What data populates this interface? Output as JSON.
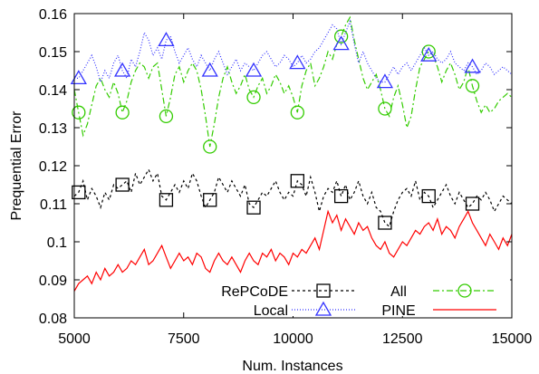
{
  "chart_data": {
    "type": "line",
    "xlabel": "Num. Instances",
    "ylabel": "Prequential Error",
    "xlim": [
      5000,
      15000
    ],
    "ylim": [
      0.08,
      0.16
    ],
    "xticks": [
      5000,
      7500,
      10000,
      12500,
      15000
    ],
    "xtick_labels": [
      "5000",
      "7500",
      "10000",
      "12500",
      "15000"
    ],
    "yticks": [
      0.08,
      0.09,
      0.1,
      0.11,
      0.12,
      0.13,
      0.14,
      0.15,
      0.16
    ],
    "ytick_labels": [
      "0.08",
      "0.09",
      "0.1",
      "0.11",
      "0.12",
      "0.13",
      "0.14",
      "0.15",
      "0.16"
    ],
    "grid": false,
    "legend_position": "bottom-right",
    "legend_rows": [
      {
        "label": "RePCoDE",
        "left_series": 0,
        "column_label": "All",
        "right_series": 1
      },
      {
        "label": "Local",
        "left_series": 2,
        "column_label": "PINE",
        "right_series": 3
      }
    ],
    "series": [
      {
        "name": "RePCoDE All",
        "color": "#000000",
        "dash": "3,3",
        "marker": "square",
        "marker_x": [
          5100,
          6100,
          7100,
          8100,
          9100,
          10100,
          11100,
          12100,
          13100,
          14100
        ],
        "x": [
          5000,
          5100,
          5200,
          5300,
          5400,
          5500,
          5600,
          5700,
          5800,
          5900,
          6000,
          6100,
          6200,
          6300,
          6400,
          6500,
          6600,
          6700,
          6800,
          6900,
          7000,
          7100,
          7200,
          7300,
          7400,
          7500,
          7600,
          7700,
          7800,
          7900,
          8000,
          8100,
          8200,
          8300,
          8400,
          8500,
          8600,
          8700,
          8800,
          8900,
          9000,
          9100,
          9200,
          9300,
          9400,
          9500,
          9600,
          9700,
          9800,
          9900,
          10000,
          10100,
          10200,
          10300,
          10400,
          10500,
          10600,
          10700,
          10800,
          10900,
          11000,
          11100,
          11200,
          11300,
          11400,
          11500,
          11600,
          11700,
          11800,
          11900,
          12000,
          12100,
          12200,
          12300,
          12400,
          12500,
          12600,
          12700,
          12800,
          12900,
          13000,
          13100,
          13200,
          13300,
          13400,
          13500,
          13600,
          13700,
          13800,
          13900,
          14000,
          14100,
          14200,
          14300,
          14400,
          14500,
          14600,
          14700,
          14800,
          14900,
          15000
        ],
        "y": [
          0.112,
          0.113,
          0.116,
          0.111,
          0.114,
          0.112,
          0.109,
          0.113,
          0.111,
          0.115,
          0.114,
          0.115,
          0.116,
          0.113,
          0.118,
          0.115,
          0.117,
          0.119,
          0.116,
          0.118,
          0.112,
          0.111,
          0.113,
          0.115,
          0.113,
          0.116,
          0.114,
          0.118,
          0.116,
          0.112,
          0.109,
          0.111,
          0.113,
          0.117,
          0.115,
          0.113,
          0.116,
          0.114,
          0.112,
          0.115,
          0.11,
          0.109,
          0.111,
          0.113,
          0.112,
          0.114,
          0.116,
          0.113,
          0.111,
          0.113,
          0.112,
          0.116,
          0.115,
          0.112,
          0.117,
          0.113,
          0.108,
          0.112,
          0.114,
          0.113,
          0.116,
          0.112,
          0.115,
          0.111,
          0.113,
          0.116,
          0.112,
          0.11,
          0.113,
          0.109,
          0.108,
          0.105,
          0.104,
          0.108,
          0.111,
          0.113,
          0.114,
          0.112,
          0.116,
          0.111,
          0.113,
          0.112,
          0.109,
          0.111,
          0.113,
          0.115,
          0.112,
          0.11,
          0.113,
          0.111,
          0.109,
          0.11,
          0.112,
          0.111,
          0.113,
          0.111,
          0.108,
          0.11,
          0.112,
          0.111,
          0.11
        ]
      },
      {
        "name": "",
        "color": "#33cc00",
        "dash": "7,3,2,3",
        "marker": "circle",
        "marker_x": [
          5100,
          6100,
          7100,
          8100,
          9100,
          10100,
          11100,
          12100,
          13100,
          14100
        ],
        "x": [
          5000,
          5100,
          5200,
          5300,
          5400,
          5500,
          5600,
          5700,
          5800,
          5900,
          6000,
          6100,
          6200,
          6300,
          6400,
          6500,
          6600,
          6700,
          6800,
          6900,
          7000,
          7100,
          7200,
          7300,
          7400,
          7500,
          7600,
          7700,
          7800,
          7900,
          8000,
          8100,
          8200,
          8300,
          8400,
          8500,
          8600,
          8700,
          8800,
          8900,
          9000,
          9100,
          9200,
          9300,
          9400,
          9500,
          9600,
          9700,
          9800,
          9900,
          10000,
          10100,
          10200,
          10300,
          10400,
          10500,
          10600,
          10700,
          10800,
          10900,
          11000,
          11100,
          11200,
          11300,
          11400,
          11500,
          11600,
          11700,
          11800,
          11900,
          12000,
          12100,
          12200,
          12300,
          12400,
          12500,
          12600,
          12700,
          12800,
          12900,
          13000,
          13100,
          13200,
          13300,
          13400,
          13500,
          13600,
          13700,
          13800,
          13900,
          14000,
          14100,
          14200,
          14300,
          14400,
          14500,
          14600,
          14700,
          14800,
          14900,
          15000
        ],
        "y": [
          0.14,
          0.134,
          0.128,
          0.131,
          0.136,
          0.141,
          0.143,
          0.14,
          0.138,
          0.142,
          0.139,
          0.134,
          0.137,
          0.142,
          0.145,
          0.147,
          0.146,
          0.143,
          0.146,
          0.147,
          0.14,
          0.133,
          0.138,
          0.144,
          0.146,
          0.142,
          0.145,
          0.147,
          0.145,
          0.14,
          0.133,
          0.125,
          0.131,
          0.138,
          0.143,
          0.146,
          0.142,
          0.139,
          0.141,
          0.144,
          0.14,
          0.138,
          0.141,
          0.143,
          0.139,
          0.141,
          0.144,
          0.142,
          0.139,
          0.141,
          0.138,
          0.134,
          0.141,
          0.145,
          0.147,
          0.141,
          0.143,
          0.146,
          0.15,
          0.148,
          0.152,
          0.154,
          0.157,
          0.159,
          0.153,
          0.148,
          0.143,
          0.14,
          0.142,
          0.144,
          0.14,
          0.135,
          0.133,
          0.138,
          0.141,
          0.136,
          0.13,
          0.133,
          0.14,
          0.146,
          0.148,
          0.15,
          0.149,
          0.146,
          0.142,
          0.145,
          0.147,
          0.144,
          0.14,
          0.142,
          0.146,
          0.141,
          0.137,
          0.134,
          0.136,
          0.134,
          0.135,
          0.137,
          0.138,
          0.139,
          0.138
        ]
      },
      {
        "name": "Local",
        "color": "#3333ff",
        "dash": "1,2",
        "marker": "triangle",
        "marker_x": [
          5100,
          6100,
          7100,
          8100,
          9100,
          10100,
          11100,
          12100,
          13100,
          14100
        ],
        "x": [
          5000,
          5100,
          5200,
          5300,
          5400,
          5500,
          5600,
          5700,
          5800,
          5900,
          6000,
          6100,
          6200,
          6300,
          6400,
          6500,
          6600,
          6700,
          6800,
          6900,
          7000,
          7100,
          7200,
          7300,
          7400,
          7500,
          7600,
          7700,
          7800,
          7900,
          8000,
          8100,
          8200,
          8300,
          8400,
          8500,
          8600,
          8700,
          8800,
          8900,
          9000,
          9100,
          9200,
          9300,
          9400,
          9500,
          9600,
          9700,
          9800,
          9900,
          10000,
          10100,
          10200,
          10300,
          10400,
          10500,
          10600,
          10700,
          10800,
          10900,
          11000,
          11100,
          11200,
          11300,
          11400,
          11500,
          11600,
          11700,
          11800,
          11900,
          12000,
          12100,
          12200,
          12300,
          12400,
          12500,
          12600,
          12700,
          12800,
          12900,
          13000,
          13100,
          13200,
          13300,
          13400,
          13500,
          13600,
          13700,
          13800,
          13900,
          14000,
          14100,
          14200,
          14300,
          14400,
          14500,
          14600,
          14700,
          14800,
          14900,
          15000
        ],
        "y": [
          0.143,
          0.143,
          0.145,
          0.147,
          0.149,
          0.146,
          0.142,
          0.145,
          0.143,
          0.147,
          0.149,
          0.145,
          0.143,
          0.148,
          0.146,
          0.15,
          0.155,
          0.153,
          0.149,
          0.151,
          0.148,
          0.153,
          0.154,
          0.15,
          0.147,
          0.149,
          0.151,
          0.148,
          0.146,
          0.149,
          0.147,
          0.145,
          0.148,
          0.15,
          0.147,
          0.144,
          0.146,
          0.148,
          0.145,
          0.147,
          0.146,
          0.145,
          0.147,
          0.149,
          0.15,
          0.148,
          0.146,
          0.147,
          0.149,
          0.148,
          0.146,
          0.147,
          0.149,
          0.147,
          0.148,
          0.15,
          0.151,
          0.153,
          0.155,
          0.157,
          0.156,
          0.152,
          0.155,
          0.158,
          0.152,
          0.147,
          0.15,
          0.147,
          0.145,
          0.143,
          0.142,
          0.142,
          0.144,
          0.146,
          0.144,
          0.146,
          0.147,
          0.145,
          0.147,
          0.149,
          0.151,
          0.149,
          0.15,
          0.148,
          0.147,
          0.148,
          0.15,
          0.147,
          0.146,
          0.145,
          0.147,
          0.146,
          0.144,
          0.145,
          0.147,
          0.146,
          0.144,
          0.145,
          0.146,
          0.145,
          0.144
        ]
      },
      {
        "name": "PINE",
        "color": "#ff0000",
        "dash": "",
        "marker": "none",
        "marker_x": [],
        "x": [
          5000,
          5100,
          5200,
          5300,
          5400,
          5500,
          5600,
          5700,
          5800,
          5900,
          6000,
          6100,
          6200,
          6300,
          6400,
          6500,
          6600,
          6700,
          6800,
          6900,
          7000,
          7100,
          7200,
          7300,
          7400,
          7500,
          7600,
          7700,
          7800,
          7900,
          8000,
          8100,
          8200,
          8300,
          8400,
          8500,
          8600,
          8700,
          8800,
          8900,
          9000,
          9100,
          9200,
          9300,
          9400,
          9500,
          9600,
          9700,
          9800,
          9900,
          10000,
          10100,
          10200,
          10300,
          10400,
          10500,
          10600,
          10700,
          10800,
          10900,
          11000,
          11100,
          11200,
          11300,
          11400,
          11500,
          11600,
          11700,
          11800,
          11900,
          12000,
          12100,
          12200,
          12300,
          12400,
          12500,
          12600,
          12700,
          12800,
          12900,
          13000,
          13100,
          13200,
          13300,
          13400,
          13500,
          13600,
          13700,
          13800,
          13900,
          14000,
          14100,
          14200,
          14300,
          14400,
          14500,
          14600,
          14700,
          14800,
          14900,
          15000
        ],
        "y": [
          0.087,
          0.089,
          0.09,
          0.091,
          0.089,
          0.092,
          0.09,
          0.093,
          0.091,
          0.092,
          0.094,
          0.092,
          0.093,
          0.095,
          0.094,
          0.096,
          0.098,
          0.094,
          0.095,
          0.097,
          0.099,
          0.096,
          0.093,
          0.095,
          0.097,
          0.095,
          0.096,
          0.094,
          0.097,
          0.096,
          0.093,
          0.092,
          0.095,
          0.097,
          0.095,
          0.094,
          0.096,
          0.094,
          0.092,
          0.095,
          0.097,
          0.095,
          0.094,
          0.097,
          0.096,
          0.098,
          0.095,
          0.097,
          0.096,
          0.094,
          0.097,
          0.096,
          0.098,
          0.097,
          0.099,
          0.101,
          0.098,
          0.103,
          0.108,
          0.105,
          0.107,
          0.103,
          0.106,
          0.104,
          0.102,
          0.105,
          0.103,
          0.104,
          0.101,
          0.099,
          0.098,
          0.1,
          0.097,
          0.096,
          0.098,
          0.1,
          0.099,
          0.101,
          0.103,
          0.102,
          0.104,
          0.105,
          0.103,
          0.106,
          0.102,
          0.104,
          0.103,
          0.101,
          0.104,
          0.106,
          0.108,
          0.105,
          0.103,
          0.101,
          0.099,
          0.102,
          0.1,
          0.098,
          0.101,
          0.099,
          0.102
        ]
      }
    ]
  }
}
